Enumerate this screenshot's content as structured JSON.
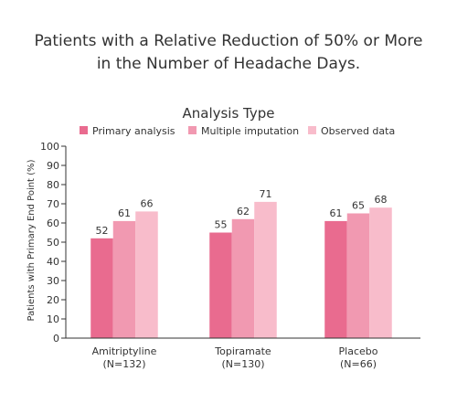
{
  "chart_data": {
    "type": "bar",
    "title": "Patients with a Relative Reduction of 50% or More in the Number of Headache Days.",
    "title_lines": [
      "Patients with a Relative Reduction of 50% or More",
      "in the Number of Headache Days."
    ],
    "legend_title": "Analysis Type",
    "legend_placement": "top",
    "categories": [
      "Amitriptyline\n(N=132)",
      "Topiramate\n(N=130)",
      "Placebo\n(N=66)"
    ],
    "category_lines": [
      [
        "Amitriptyline",
        "(N=132)"
      ],
      [
        "Topiramate",
        "(N=130)"
      ],
      [
        "Placebo",
        "(N=66)"
      ]
    ],
    "series": [
      {
        "name": "Primary analysis",
        "values": [
          52,
          55,
          61
        ],
        "color": "#e96b8f"
      },
      {
        "name": "Multiple imputation",
        "values": [
          61,
          62,
          65
        ],
        "color": "#f199b1"
      },
      {
        "name": "Observed data",
        "values": [
          66,
          71,
          68
        ],
        "color": "#f8bccb"
      }
    ],
    "ylabel": "Patients with Primary End Point (%)",
    "xlabel": "",
    "ylim": [
      0,
      100
    ],
    "yticks": [
      0,
      10,
      20,
      30,
      40,
      50,
      60,
      70,
      80,
      90,
      100
    ],
    "grid": false,
    "data_labels": true
  }
}
